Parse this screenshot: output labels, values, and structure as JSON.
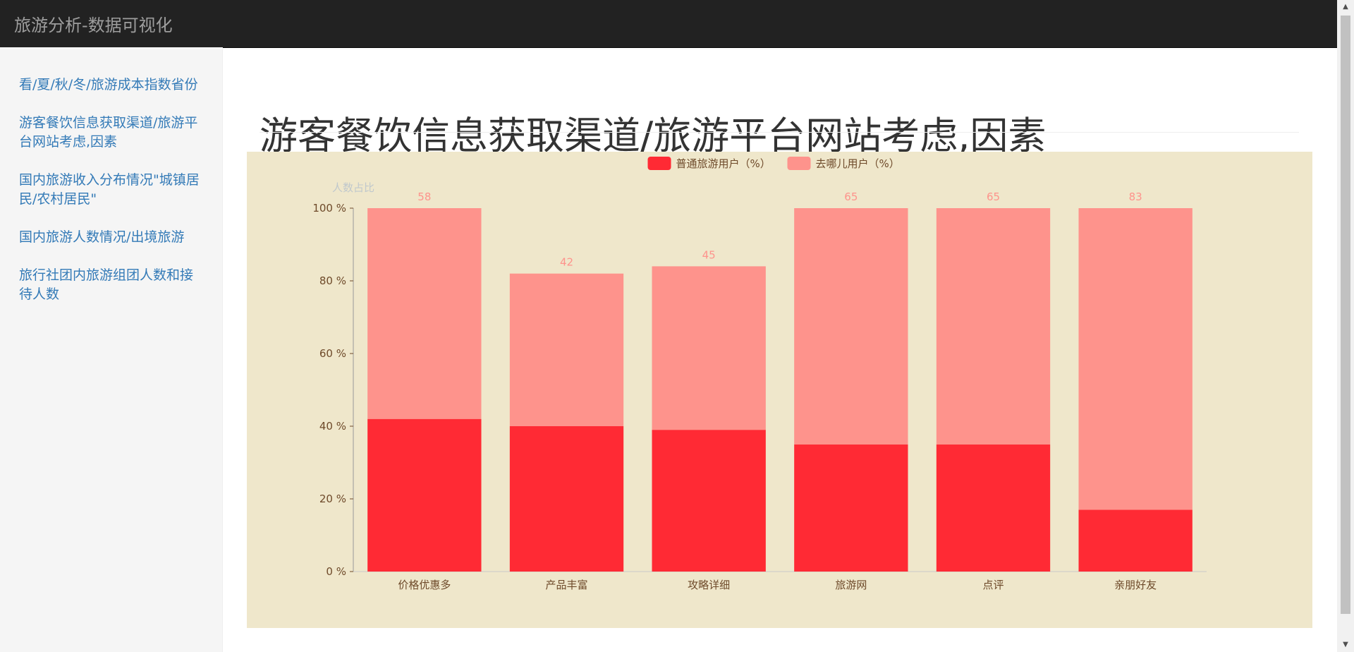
{
  "navbar": {
    "brand": "旅游分析-数据可视化"
  },
  "sidebar": {
    "items": [
      {
        "label": "看/夏/秋/冬/旅游成本指数省份"
      },
      {
        "label": "游客餐饮信息获取渠道/旅游平台网站考虑,因素"
      },
      {
        "label": "国内旅游收入分布情况\"城镇居民/农村居民\""
      },
      {
        "label": "国内旅游人数情况/出境旅游"
      },
      {
        "label": "旅行社团内旅游组团人数和接待人数"
      }
    ]
  },
  "page": {
    "title": "游客餐饮信息获取渠道/旅游平台网站考虑,因素"
  },
  "chart_data": {
    "type": "bar",
    "stacked": true,
    "background": "#efe7cb",
    "ylabel": "人数占比",
    "ylim": [
      0,
      100
    ],
    "yticks": [
      0,
      20,
      40,
      60,
      80,
      100
    ],
    "ytick_suffix": " %",
    "legend_position": "top",
    "categories": [
      "价格优惠多",
      "产品丰富",
      "攻略详细",
      "旅游网",
      "点评",
      "亲朋好友"
    ],
    "series": [
      {
        "name": "普通旅游用户（%）",
        "color": "#ff2a34",
        "values": [
          42,
          40,
          39,
          35,
          35,
          17
        ]
      },
      {
        "name": "去哪儿用户（%）",
        "color": "#fe938c",
        "values": [
          58,
          42,
          45,
          65,
          65,
          83
        ],
        "show_labels": true
      }
    ],
    "colors": {
      "axis_text": "#6e4a2a",
      "value_label": "#fe938c",
      "axis_name": "#c0c8cc"
    }
  }
}
